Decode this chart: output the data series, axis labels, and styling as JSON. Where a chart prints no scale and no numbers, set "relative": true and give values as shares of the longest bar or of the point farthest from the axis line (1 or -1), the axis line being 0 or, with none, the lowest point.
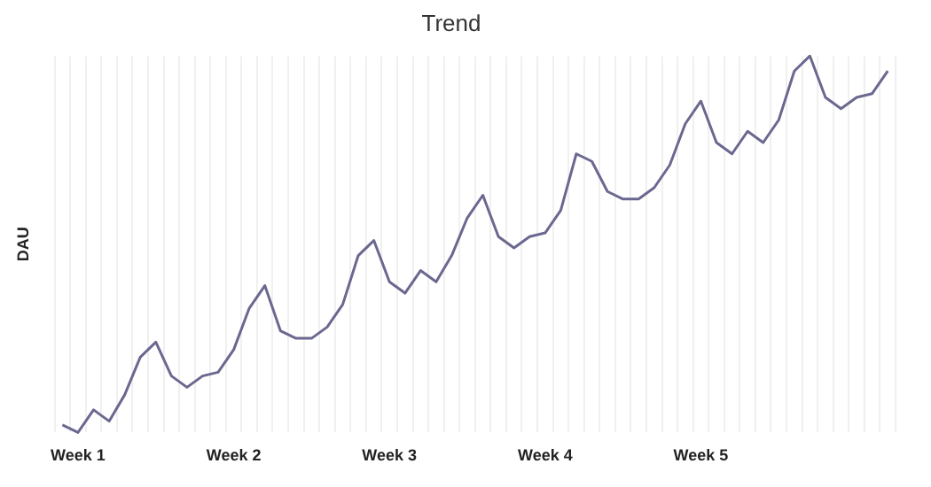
{
  "chart_data": {
    "type": "line",
    "title": "Trend",
    "ylabel": "DAU",
    "relative": true,
    "grid": "x",
    "legend": false,
    "marker": "none",
    "line_style": "solid",
    "categories": [
      null,
      "Week 1",
      null,
      null,
      null,
      null,
      null,
      null,
      null,
      null,
      null,
      "Week 2",
      null,
      null,
      null,
      null,
      null,
      null,
      null,
      null,
      null,
      "Week 3",
      null,
      null,
      null,
      null,
      null,
      null,
      null,
      null,
      null,
      "Week 4",
      null,
      null,
      null,
      null,
      null,
      null,
      null,
      null,
      null,
      "Week 5",
      null,
      null,
      null,
      null,
      null,
      null,
      null,
      null,
      null,
      null,
      null,
      null
    ],
    "series": [
      {
        "color": "#6b6890",
        "values": [
          0.02,
          0,
          0.06,
          0.03,
          0.1,
          0.2,
          0.24,
          0.15,
          0.12,
          0.15,
          0.16,
          0.22,
          0.33,
          0.39,
          0.27,
          0.25,
          0.25,
          0.28,
          0.34,
          0.47,
          0.51,
          0.4,
          0.37,
          0.43,
          0.4,
          0.47,
          0.57,
          0.63,
          0.52,
          0.49,
          0.52,
          0.53,
          0.59,
          0.74,
          0.72,
          0.64,
          0.62,
          0.62,
          0.65,
          0.71,
          0.82,
          0.88,
          0.77,
          0.74,
          0.8,
          0.77,
          0.83,
          0.96,
          1,
          0.89,
          0.86,
          0.89,
          0.9,
          0.96
        ]
      }
    ]
  }
}
